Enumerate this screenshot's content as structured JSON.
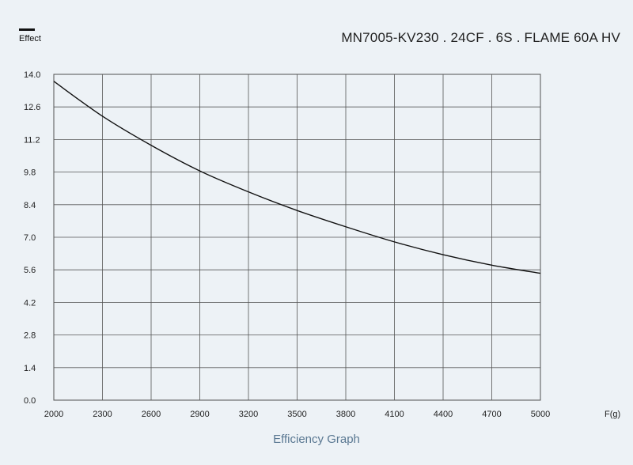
{
  "chart_data": {
    "type": "line",
    "title": "MN7005-KV230 . 24CF . 6S . FLAME 60A HV",
    "legend_label": "Effect",
    "xlabel": "F(g)",
    "ylabel": "",
    "caption": "Efficiency Graph",
    "xlim": [
      2000,
      5000
    ],
    "ylim": [
      0.0,
      14.0
    ],
    "x_ticks": [
      2000,
      2300,
      2600,
      2900,
      3200,
      3500,
      3800,
      4100,
      4400,
      4700,
      5000
    ],
    "y_ticks": [
      0.0,
      1.4,
      2.8,
      4.2,
      5.6,
      7.0,
      8.4,
      9.8,
      11.2,
      12.6,
      14.0
    ],
    "y_tick_labels": [
      "0.0",
      "1.4",
      "2.8",
      "4.2",
      "5.6",
      "7.0",
      "8.4",
      "9.8",
      "11.2",
      "12.6",
      "14.0"
    ],
    "grid": true,
    "legend_position": "top-left",
    "series": [
      {
        "name": "Effect",
        "color": "#111111",
        "x": [
          2000,
          2300,
          2600,
          2900,
          3200,
          3500,
          3800,
          4100,
          4400,
          4700,
          5000
        ],
        "y": [
          13.7,
          12.2,
          10.95,
          9.85,
          8.95,
          8.15,
          7.45,
          6.8,
          6.25,
          5.8,
          5.45
        ]
      }
    ]
  }
}
